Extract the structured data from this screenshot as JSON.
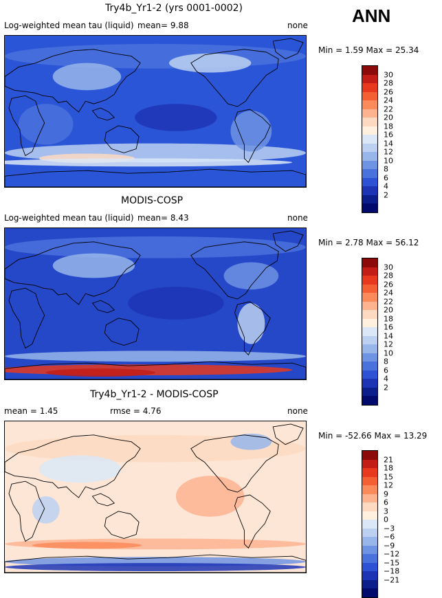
{
  "season": "ANN",
  "land_color": "#000000",
  "panels": [
    {
      "title": "Try4b_Yr1-2 (yrs 0001-0002)",
      "left_label": "Log-weighted mean tau (liquid)",
      "mean_text": "mean=    9.88",
      "units": "none",
      "minmax_text": "Min =    1.59  Max =   25.34",
      "bg": "#2a55d6",
      "colorbar": {
        "colors": [
          "#8c0a0a",
          "#c21d16",
          "#e8391f",
          "#f45f34",
          "#fb8a5a",
          "#fdb390",
          "#fdd9c2",
          "#fff0e0",
          "#dbe7f7",
          "#bcd1f1",
          "#98b6ea",
          "#6e93e2",
          "#4a72dc",
          "#2d52d4",
          "#1d35b5",
          "#0c1d8c",
          "#030a6e"
        ],
        "labels": [
          "30",
          "28",
          "26",
          "24",
          "22",
          "20",
          "18",
          "16",
          "14",
          "12",
          "10",
          "8",
          "6",
          "4",
          "2"
        ]
      }
    },
    {
      "title": "MODIS-COSP",
      "left_label": "Log-weighted mean tau (liquid)",
      "mean_text": "mean=    8.43",
      "units": "none",
      "minmax_text": "Min =    2.78  Max =   56.12",
      "bg": "#2548c8",
      "colorbar": {
        "colors": [
          "#8c0a0a",
          "#c21d16",
          "#e8391f",
          "#f45f34",
          "#fb8a5a",
          "#fdb390",
          "#fdd9c2",
          "#fff0e0",
          "#dbe7f7",
          "#bcd1f1",
          "#98b6ea",
          "#6e93e2",
          "#4a72dc",
          "#2d52d4",
          "#1d35b5",
          "#0c1d8c",
          "#030a6e"
        ],
        "labels": [
          "30",
          "28",
          "26",
          "24",
          "22",
          "20",
          "18",
          "16",
          "14",
          "12",
          "10",
          "8",
          "6",
          "4",
          "2"
        ]
      }
    },
    {
      "title": "Try4b_Yr1-2 - MODIS-COSP",
      "left_label": "mean =    1.45",
      "mean_text": "rmse =    4.76",
      "units": "none",
      "minmax_text": "Min = -52.66  Max =   13.29",
      "bg": "#fde6d6",
      "colorbar": {
        "colors": [
          "#8c0a0a",
          "#c21d16",
          "#e8391f",
          "#f45f34",
          "#fb8a5a",
          "#fdb390",
          "#fdd9c2",
          "#fff0e0",
          "#dbe7f7",
          "#bcd1f1",
          "#98b6ea",
          "#6e93e2",
          "#4a72dc",
          "#2d52d4",
          "#1d35b5",
          "#0c1d8c",
          "#030a6e"
        ],
        "labels": [
          "21",
          "18",
          "15",
          "12",
          "9",
          "6",
          "3",
          "0",
          "−3",
          "−6",
          "−9",
          "−12",
          "−15",
          "−18",
          "−21"
        ]
      }
    }
  ]
}
